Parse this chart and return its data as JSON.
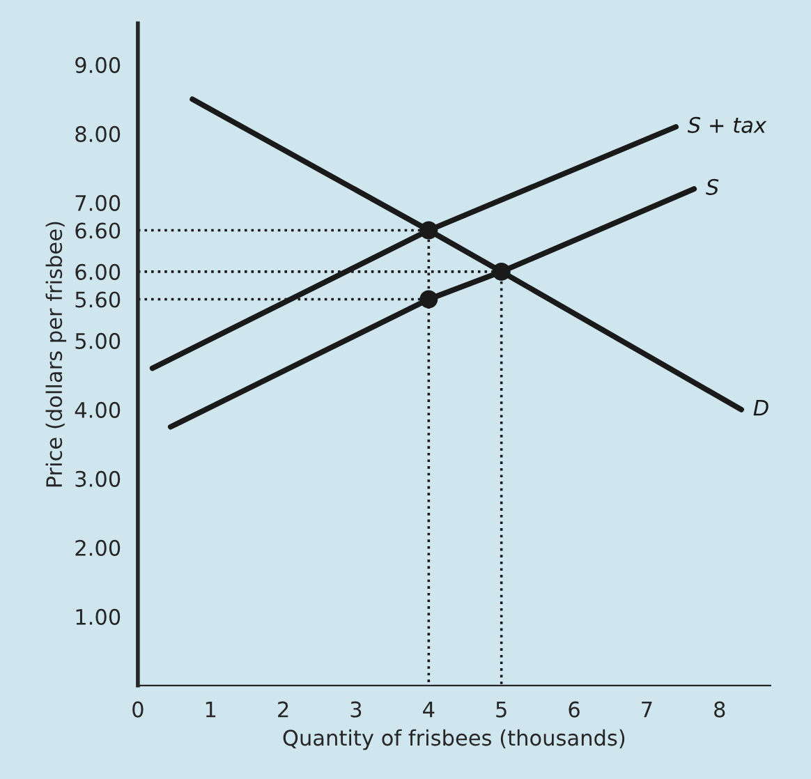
{
  "chart_data": {
    "type": "line",
    "xlabel": "Quantity of frisbees (thousands)",
    "ylabel": "Price (dollars per frisbee)",
    "xlim": [
      0,
      8.7
    ],
    "ylim": [
      0,
      9.6
    ],
    "xticks": [
      0,
      1,
      2,
      3,
      4,
      5,
      6,
      7,
      8
    ],
    "yticks": [
      {
        "value": 1,
        "label": "1.00"
      },
      {
        "value": 2,
        "label": "2.00"
      },
      {
        "value": 3,
        "label": "3.00"
      },
      {
        "value": 4,
        "label": "4.00"
      },
      {
        "value": 5,
        "label": "5.00"
      },
      {
        "value": 5.6,
        "label": "5.60"
      },
      {
        "value": 6,
        "label": "6.00"
      },
      {
        "value": 6.6,
        "label": "6.60"
      },
      {
        "value": 7,
        "label": "7.00"
      },
      {
        "value": 8,
        "label": "8.00"
      },
      {
        "value": 9,
        "label": "9.00"
      }
    ],
    "grid": false,
    "legend": false,
    "line_style": "solid",
    "marker": "none",
    "series": [
      {
        "name": "S + tax",
        "color": "#1a1a1a",
        "x": [
          0.2,
          4,
          7.4
        ],
        "values": [
          4.6,
          6.6,
          8.1
        ]
      },
      {
        "name": "S",
        "color": "#1a1a1a",
        "x": [
          0.45,
          4,
          5,
          7.65
        ],
        "values": [
          3.75,
          5.6,
          6.0,
          7.2
        ]
      },
      {
        "name": "D",
        "color": "#1a1a1a",
        "x": [
          0.75,
          4,
          5,
          8.3
        ],
        "values": [
          8.5,
          6.6,
          6.0,
          4.0
        ]
      },
      {
        "color": "#1a1a1a",
        "line_style": "dotted",
        "x": [
          0,
          4,
          4
        ],
        "values": [
          6.6,
          6.6,
          0
        ]
      },
      {
        "color": "#1a1a1a",
        "line_style": "dotted",
        "x": [
          0,
          5,
          5
        ],
        "values": [
          6.0,
          6.0,
          0
        ]
      },
      {
        "color": "#1a1a1a",
        "line_style": "dotted",
        "x": [
          0,
          4
        ],
        "values": [
          5.6,
          5.6
        ]
      },
      {
        "type": "scatter",
        "marker": "circle",
        "color": "#1a1a1a",
        "x": [
          4,
          5,
          4
        ],
        "values": [
          6.6,
          6.0,
          5.6
        ]
      }
    ]
  }
}
